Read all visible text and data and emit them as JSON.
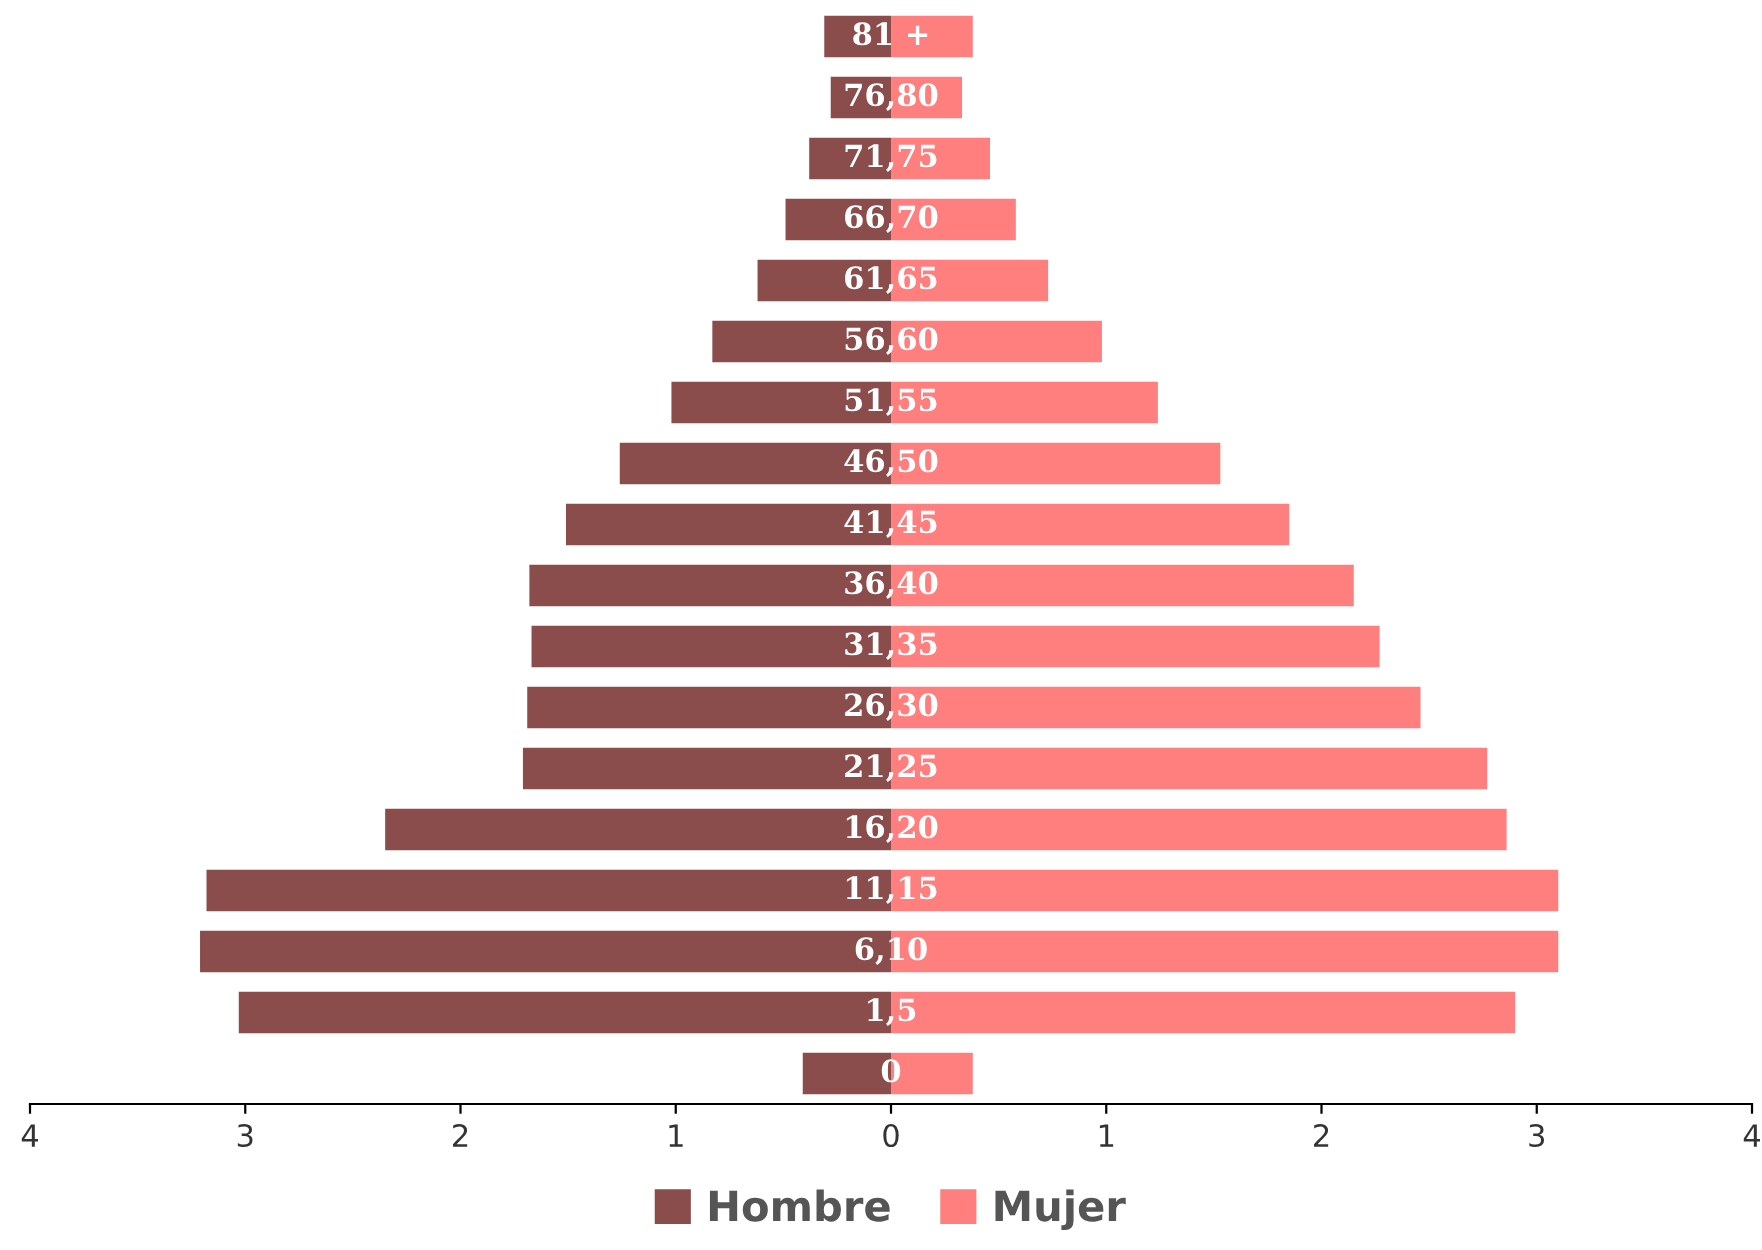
{
  "chart_data": {
    "type": "bar",
    "orientation": "horizontal",
    "categories": [
      "81 +",
      "76,80",
      "71,75",
      "66,70",
      "61,65",
      "56,60",
      "51,55",
      "46,50",
      "41,45",
      "36,40",
      "31,35",
      "26,30",
      "21,25",
      "16,20",
      "11,15",
      "6,10",
      "1,5",
      "0"
    ],
    "series": [
      {
        "name": "Hombre",
        "color": "#8b4c4c",
        "values": [
          -0.31,
          -0.28,
          -0.38,
          -0.49,
          -0.62,
          -0.83,
          -1.02,
          -1.26,
          -1.51,
          -1.68,
          -1.67,
          -1.69,
          -1.71,
          -2.35,
          -3.18,
          -3.21,
          -3.03,
          -0.41
        ]
      },
      {
        "name": "Mujer",
        "color": "#ff7f7f",
        "values": [
          0.38,
          0.33,
          0.46,
          0.58,
          0.73,
          0.98,
          1.24,
          1.53,
          1.85,
          2.15,
          2.27,
          2.46,
          2.77,
          2.86,
          3.1,
          3.1,
          2.9,
          0.38
        ]
      }
    ],
    "xlim": [
      -4,
      4
    ],
    "xticks": [
      {
        "value": -4,
        "label": "4"
      },
      {
        "value": -3,
        "label": "3"
      },
      {
        "value": -2,
        "label": "2"
      },
      {
        "value": -1,
        "label": "1"
      },
      0,
      1,
      2,
      3,
      4
    ],
    "stacked": true,
    "grid": false,
    "legend": "bottom"
  }
}
